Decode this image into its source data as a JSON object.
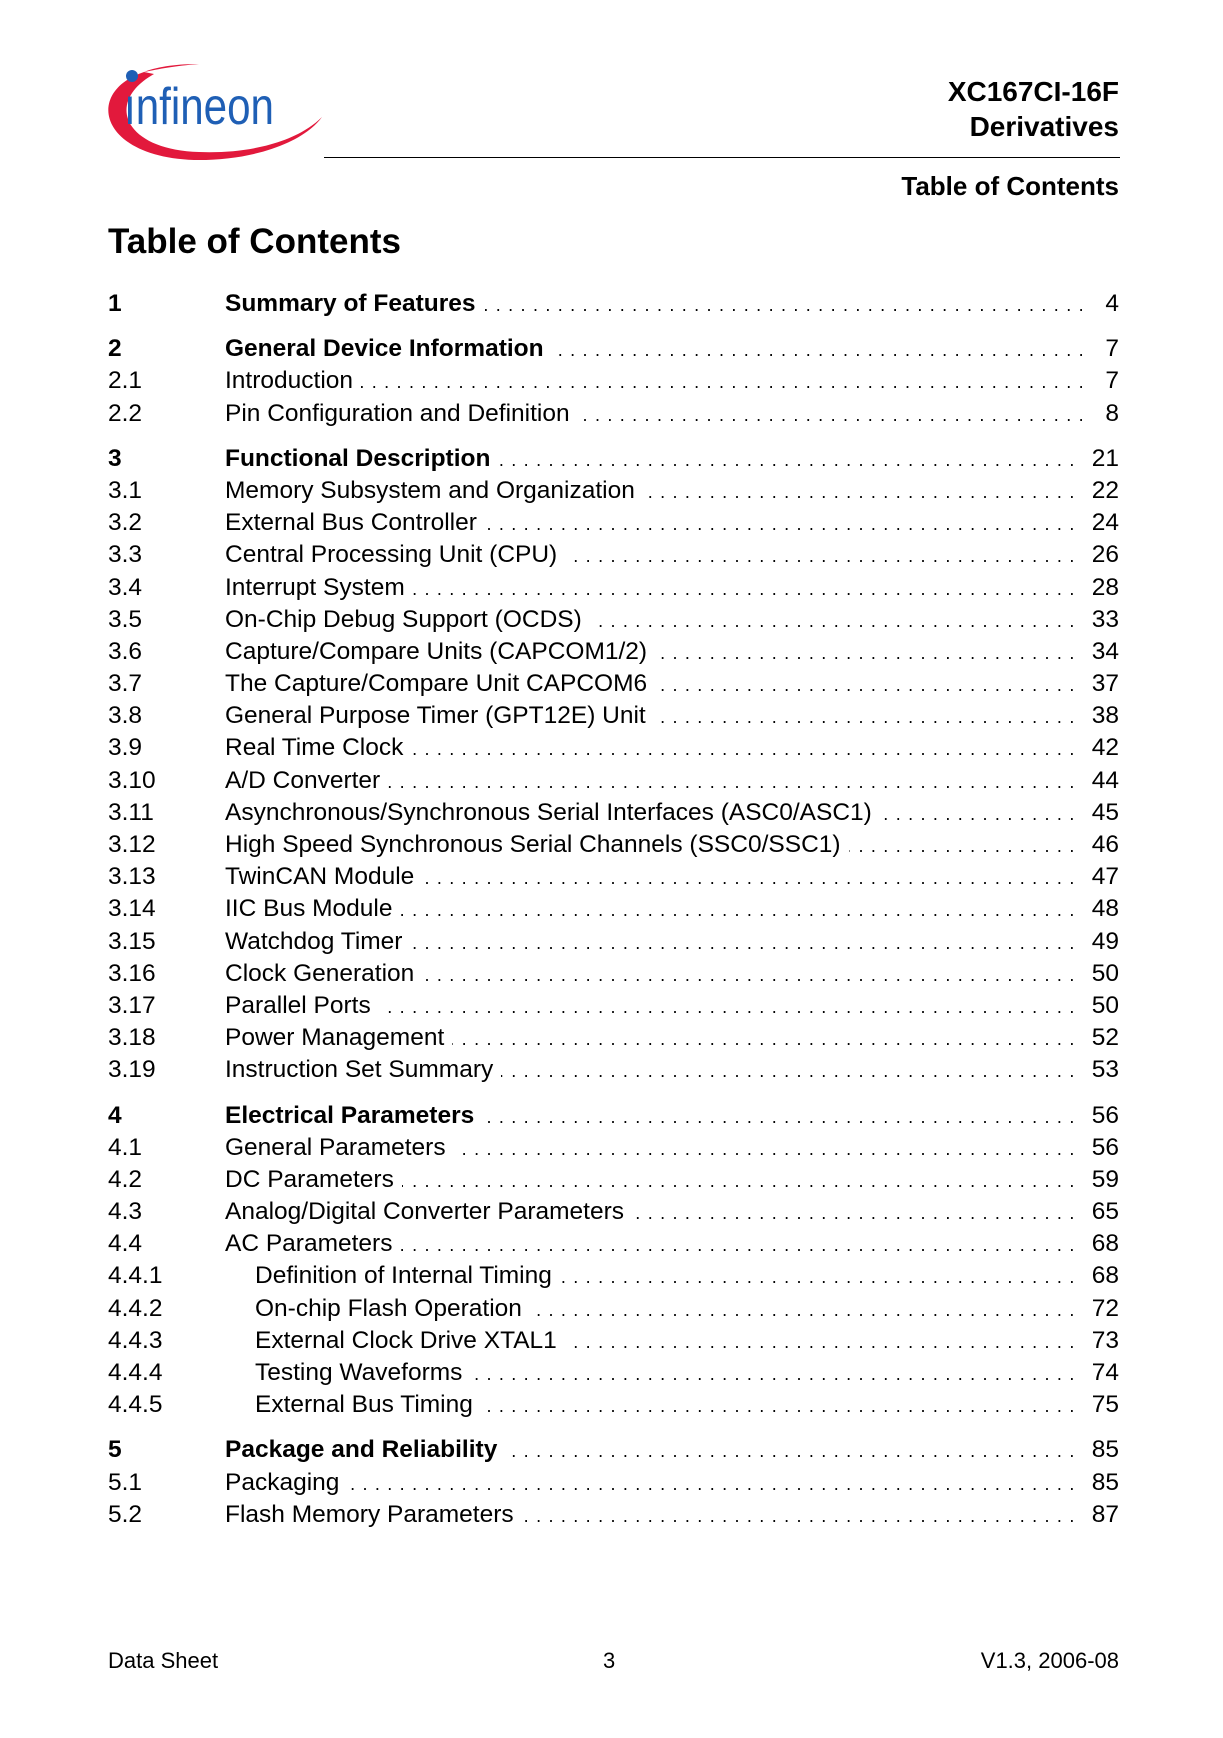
{
  "header": {
    "logo_text": "Infineon",
    "product_line1": "XC167CI-16F",
    "product_line2": "Derivatives",
    "section": "Table of Contents"
  },
  "page_title": "Table of Contents",
  "colors": {
    "logo_blue": "#1f5fb5",
    "logo_red": "#e2193c"
  },
  "toc": [
    {
      "entries": [
        {
          "num": "1",
          "title": "Summary of Features",
          "page": "4",
          "level": 1
        }
      ]
    },
    {
      "entries": [
        {
          "num": "2",
          "title": "General Device Information",
          "page": "7",
          "level": 1
        },
        {
          "num": "2.1",
          "title": "Introduction",
          "page": "7",
          "level": 2
        },
        {
          "num": "2.2",
          "title": "Pin Configuration and Definition",
          "page": "8",
          "level": 2
        }
      ]
    },
    {
      "entries": [
        {
          "num": "3",
          "title": "Functional Description",
          "page": "21",
          "level": 1
        },
        {
          "num": "3.1",
          "title": "Memory Subsystem and Organization",
          "page": "22",
          "level": 2
        },
        {
          "num": "3.2",
          "title": "External Bus Controller",
          "page": "24",
          "level": 2
        },
        {
          "num": "3.3",
          "title": "Central Processing Unit (CPU)",
          "page": "26",
          "level": 2
        },
        {
          "num": "3.4",
          "title": "Interrupt System",
          "page": "28",
          "level": 2
        },
        {
          "num": "3.5",
          "title": "On-Chip Debug Support (OCDS)",
          "page": "33",
          "level": 2
        },
        {
          "num": "3.6",
          "title": "Capture/Compare Units (CAPCOM1/2)",
          "page": "34",
          "level": 2
        },
        {
          "num": "3.7",
          "title": "The Capture/Compare Unit CAPCOM6",
          "page": "37",
          "level": 2
        },
        {
          "num": "3.8",
          "title": "General Purpose Timer (GPT12E) Unit",
          "page": "38",
          "level": 2
        },
        {
          "num": "3.9",
          "title": "Real Time Clock",
          "page": "42",
          "level": 2
        },
        {
          "num": "3.10",
          "title": "A/D Converter",
          "page": "44",
          "level": 2
        },
        {
          "num": "3.11",
          "title": "Asynchronous/Synchronous Serial Interfaces (ASC0/ASC1)",
          "page": "45",
          "level": 2
        },
        {
          "num": "3.12",
          "title": "High Speed Synchronous Serial Channels (SSC0/SSC1)",
          "page": "46",
          "level": 2
        },
        {
          "num": "3.13",
          "title": "TwinCAN Module",
          "page": "47",
          "level": 2
        },
        {
          "num": "3.14",
          "title": "IIC Bus Module",
          "page": "48",
          "level": 2
        },
        {
          "num": "3.15",
          "title": "Watchdog Timer",
          "page": "49",
          "level": 2
        },
        {
          "num": "3.16",
          "title": "Clock Generation",
          "page": "50",
          "level": 2
        },
        {
          "num": "3.17",
          "title": "Parallel Ports",
          "page": "50",
          "level": 2
        },
        {
          "num": "3.18",
          "title": "Power Management",
          "page": "52",
          "level": 2
        },
        {
          "num": "3.19",
          "title": "Instruction Set Summary",
          "page": "53",
          "level": 2
        }
      ]
    },
    {
      "entries": [
        {
          "num": "4",
          "title": "Electrical Parameters",
          "page": "56",
          "level": 1
        },
        {
          "num": "4.1",
          "title": "General Parameters",
          "page": "56",
          "level": 2
        },
        {
          "num": "4.2",
          "title": "DC Parameters",
          "page": "59",
          "level": 2
        },
        {
          "num": "4.3",
          "title": "Analog/Digital Converter Parameters",
          "page": "65",
          "level": 2
        },
        {
          "num": "4.4",
          "title": "AC Parameters",
          "page": "68",
          "level": 2
        },
        {
          "num": "4.4.1",
          "title": "Definition of Internal Timing",
          "page": "68",
          "level": 3
        },
        {
          "num": "4.4.2",
          "title": "On-chip Flash Operation",
          "page": "72",
          "level": 3
        },
        {
          "num": "4.4.3",
          "title": "External Clock Drive XTAL1",
          "page": "73",
          "level": 3
        },
        {
          "num": "4.4.4",
          "title": "Testing Waveforms",
          "page": "74",
          "level": 3
        },
        {
          "num": "4.4.5",
          "title": "External Bus Timing",
          "page": "75",
          "level": 3
        }
      ]
    },
    {
      "entries": [
        {
          "num": "5",
          "title": "Package and Reliability",
          "page": "85",
          "level": 1
        },
        {
          "num": "5.1",
          "title": "Packaging",
          "page": "85",
          "level": 2
        },
        {
          "num": "5.2",
          "title": "Flash Memory Parameters",
          "page": "87",
          "level": 2
        }
      ]
    }
  ],
  "footer": {
    "left": "Data Sheet",
    "center": "3",
    "right": "V1.3, 2006-08"
  }
}
